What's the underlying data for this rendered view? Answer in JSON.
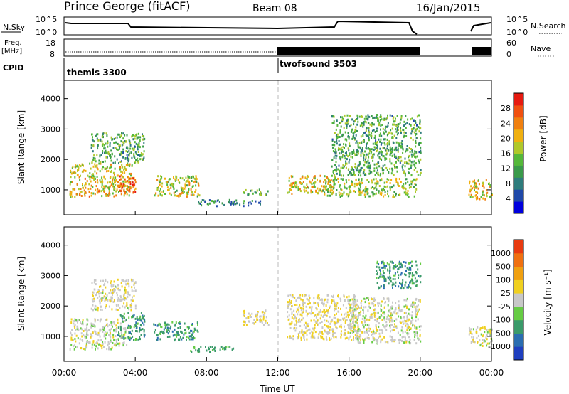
{
  "header": {
    "station": "Prince George (fitACF)",
    "beam": "Beam 08",
    "date": "16/Jan/2015"
  },
  "top_panels": {
    "nsky_label": "N.Sky",
    "nsky_ticks": [
      "10^5",
      "10^0"
    ],
    "nsearch_label": "N.Search",
    "nsearch_ticks": [
      "10^5",
      "10^0"
    ],
    "freq_label": "Freq.",
    "freq_unit": "[MHz]",
    "freq_ticks": [
      "18",
      "8"
    ],
    "nave_label": "Nave",
    "nave_ticks": [
      "60",
      "0"
    ],
    "cpid_label": "CPID",
    "cpid_segments": [
      {
        "name": "themis 3300",
        "start_hour": 0
      },
      {
        "name": "twofsound 3503",
        "start_hour": 12
      }
    ]
  },
  "chart_data": [
    {
      "type": "heatmap",
      "title": "Power",
      "ylabel": "Slant Range [km]",
      "xlabel": "Time UT",
      "xlim": [
        0,
        24
      ],
      "ylim": [
        180,
        4600
      ],
      "x_ticks": [
        "00:00",
        "04:00",
        "08:00",
        "12:00",
        "16:00",
        "20:00",
        "00:00"
      ],
      "y_ticks": [
        1000,
        2000,
        3000,
        4000
      ],
      "colorbar": {
        "label": "Power [dB]",
        "ticks": [
          "28",
          "24",
          "20",
          "16",
          "12",
          "8",
          "4"
        ],
        "colors": [
          "#0000dd",
          "#1f48a8",
          "#2e7c7c",
          "#3a9a4a",
          "#55b83a",
          "#b0c82a",
          "#f0b010",
          "#f08010",
          "#f05010",
          "#e61a10"
        ]
      },
      "echo_regions": [
        {
          "t": [
            0.3,
            3.8
          ],
          "r": [
            800,
            1900
          ],
          "v": 20
        },
        {
          "t": [
            1.5,
            4.5
          ],
          "r": [
            1900,
            2900
          ],
          "v": 12
        },
        {
          "t": [
            3.0,
            4.0
          ],
          "r": [
            900,
            1500
          ],
          "v": 26
        },
        {
          "t": [
            5.0,
            7.6
          ],
          "r": [
            800,
            1500
          ],
          "v": 18
        },
        {
          "t": [
            7.5,
            11.0
          ],
          "r": [
            500,
            700
          ],
          "v": 8
        },
        {
          "t": [
            10.0,
            11.5
          ],
          "r": [
            850,
            1050
          ],
          "v": 12
        },
        {
          "t": [
            12.5,
            15.2
          ],
          "r": [
            900,
            1500
          ],
          "v": 20
        },
        {
          "t": [
            14.5,
            19.8
          ],
          "r": [
            800,
            1400
          ],
          "v": 16
        },
        {
          "t": [
            15.0,
            20.0
          ],
          "r": [
            1500,
            3500
          ],
          "v": 12
        },
        {
          "t": [
            22.7,
            24.0
          ],
          "r": [
            700,
            1400
          ],
          "v": 20
        }
      ]
    },
    {
      "type": "heatmap",
      "title": "Velocity",
      "ylabel": "Slant Range [km]",
      "xlabel": "Time UT",
      "xlim": [
        0,
        24
      ],
      "ylim": [
        180,
        4600
      ],
      "x_ticks": [
        "00:00",
        "04:00",
        "08:00",
        "12:00",
        "16:00",
        "20:00",
        "00:00"
      ],
      "y_ticks": [
        1000,
        2000,
        3000,
        4000
      ],
      "colorbar": {
        "label": "Velocity [m s⁻¹]",
        "ticks": [
          "1000",
          "500",
          "100",
          "25",
          "-25",
          "-100",
          "-500",
          "-1000"
        ],
        "colors": [
          "#1f3fbf",
          "#2a6db0",
          "#3a9a6a",
          "#66cc44",
          "#c8c8c8",
          "#f0d020",
          "#f0a010",
          "#f07010",
          "#e83a10"
        ]
      },
      "echo_regions": [
        {
          "t": [
            0.3,
            3.5
          ],
          "r": [
            600,
            1600
          ],
          "v": 0
        },
        {
          "t": [
            1.5,
            4.0
          ],
          "r": [
            1900,
            2900
          ],
          "v": 80
        },
        {
          "t": [
            3.0,
            4.5
          ],
          "r": [
            900,
            1800
          ],
          "v": -600
        },
        {
          "t": [
            5.0,
            7.5
          ],
          "r": [
            900,
            1500
          ],
          "v": -600
        },
        {
          "t": [
            7.0,
            9.5
          ],
          "r": [
            500,
            700
          ],
          "v": -500
        },
        {
          "t": [
            10.0,
            11.5
          ],
          "r": [
            1400,
            1900
          ],
          "v": 200
        },
        {
          "t": [
            12.5,
            16.5
          ],
          "r": [
            900,
            2400
          ],
          "v": 120
        },
        {
          "t": [
            16.0,
            20.0
          ],
          "r": [
            800,
            2300
          ],
          "v": 0
        },
        {
          "t": [
            17.5,
            20.0
          ],
          "r": [
            2600,
            3500
          ],
          "v": -600
        },
        {
          "t": [
            22.7,
            24.0
          ],
          "r": [
            700,
            1400
          ],
          "v": 0
        }
      ]
    }
  ]
}
